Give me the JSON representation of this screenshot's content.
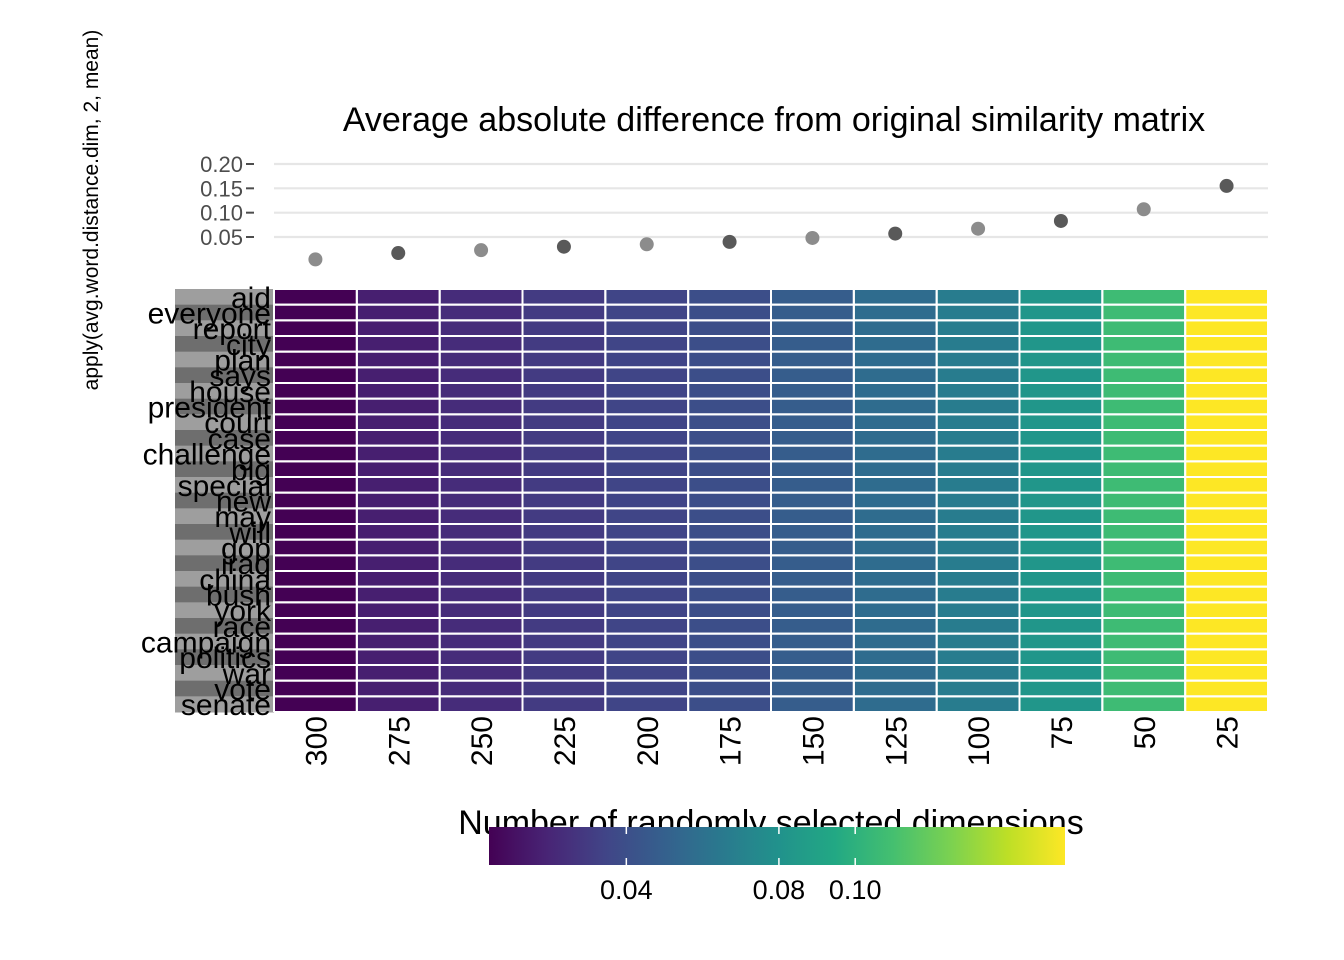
{
  "chart_data": [
    {
      "type": "scatter",
      "title": "Average absolute difference from original similarity matrix",
      "ylabel": "apply(avg.word.distance.dim, 2, mean)",
      "ylim": [
        -0.0,
        0.2
      ],
      "yticks": [
        "0.05",
        "0.10",
        "0.15",
        "0.20"
      ],
      "ytick_values": [
        0.05,
        0.1,
        0.15,
        0.2
      ],
      "grid": true,
      "categories": [
        "300",
        "275",
        "250",
        "225",
        "200",
        "175",
        "150",
        "125",
        "100",
        "75",
        "50",
        "25"
      ],
      "values": [
        0.004,
        0.017,
        0.023,
        0.03,
        0.035,
        0.04,
        0.048,
        0.057,
        0.067,
        0.083,
        0.107,
        0.155
      ],
      "point_colors": [
        "#8c8c8c",
        "#595959",
        "#8c8c8c",
        "#595959",
        "#8c8c8c",
        "#595959",
        "#8c8c8c",
        "#595959",
        "#8c8c8c",
        "#595959",
        "#8c8c8c",
        "#595959"
      ]
    },
    {
      "type": "heatmap",
      "xlabel": "Number of randomly selected dimensions",
      "x_categories": [
        "300",
        "275",
        "250",
        "225",
        "200",
        "175",
        "150",
        "125",
        "100",
        "75",
        "50",
        "25"
      ],
      "rows": [
        "aid",
        "everyone",
        "report",
        "city",
        "plan",
        "says",
        "house",
        "president",
        "court",
        "case",
        "challenge",
        "big",
        "special",
        "new",
        "may",
        "will",
        "gop",
        "iraq",
        "china",
        "bush",
        "york",
        "race",
        "campaign",
        "politics",
        "war",
        "vote",
        "senate"
      ],
      "column_values": [
        0.004,
        0.017,
        0.023,
        0.03,
        0.035,
        0.04,
        0.048,
        0.057,
        0.067,
        0.083,
        0.107,
        0.155
      ],
      "colorscale": "viridis",
      "legend": {
        "position": "bottom",
        "ticks": [
          "0.04",
          "0.08",
          "0.10"
        ],
        "tick_values": [
          0.04,
          0.08,
          0.1
        ],
        "range": [
          0.004,
          0.155
        ]
      },
      "row_strip_colors": [
        "#9e9e9e",
        "#6e6e6e"
      ]
    }
  ]
}
